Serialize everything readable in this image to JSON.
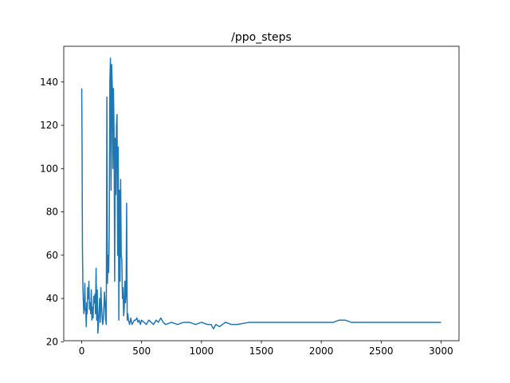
{
  "chart_data": {
    "type": "line",
    "title": "/ppo_steps",
    "xlabel": "",
    "ylabel": "",
    "xlim": [
      -150,
      3150
    ],
    "ylim": [
      20.5,
      156.5
    ],
    "xticks": [
      0,
      500,
      1000,
      1500,
      2000,
      2500,
      3000
    ],
    "yticks": [
      20,
      40,
      60,
      80,
      100,
      120,
      140
    ],
    "grid": false,
    "legend": "none",
    "series": [
      {
        "color": "#1f77b4",
        "x": [
          0,
          3,
          6,
          10,
          14,
          18,
          22,
          26,
          30,
          34,
          38,
          42,
          46,
          50,
          55,
          60,
          65,
          70,
          75,
          80,
          85,
          90,
          95,
          100,
          105,
          110,
          115,
          120,
          125,
          130,
          135,
          140,
          145,
          150,
          155,
          160,
          165,
          170,
          175,
          180,
          185,
          190,
          195,
          200,
          205,
          210,
          215,
          220,
          225,
          230,
          235,
          240,
          245,
          250,
          255,
          260,
          265,
          270,
          275,
          280,
          285,
          290,
          295,
          300,
          305,
          310,
          315,
          320,
          325,
          330,
          335,
          340,
          345,
          350,
          355,
          360,
          365,
          370,
          375,
          380,
          385,
          390,
          395,
          400,
          410,
          420,
          430,
          440,
          450,
          460,
          470,
          480,
          490,
          500,
          520,
          540,
          560,
          580,
          600,
          620,
          640,
          660,
          680,
          700,
          750,
          800,
          850,
          900,
          950,
          1000,
          1050,
          1080,
          1100,
          1120,
          1150,
          1200,
          1250,
          1300,
          1400,
          1500,
          1600,
          1700,
          1800,
          1900,
          2000,
          2050,
          2100,
          2150,
          2200,
          2250,
          2300,
          2400,
          2500,
          2600,
          2700,
          2800,
          2900,
          3000
        ],
        "y": [
          137,
          110,
          64,
          45,
          38,
          33,
          35,
          47,
          36,
          34,
          27,
          38,
          33,
          45,
          40,
          48,
          35,
          38,
          33,
          44,
          30,
          36,
          31,
          41,
          38,
          42,
          33,
          54,
          30,
          44,
          24,
          28,
          34,
          40,
          29,
          45,
          37,
          32,
          28,
          30,
          36,
          43,
          38,
          30,
          28,
          133,
          47,
          60,
          52,
          70,
          140,
          151,
          90,
          148,
          138,
          100,
          137,
          118,
          48,
          114,
          88,
          120,
          125,
          60,
          110,
          30,
          90,
          48,
          95,
          60,
          58,
          40,
          45,
          32,
          35,
          48,
          38,
          42,
          84,
          30,
          33,
          30,
          29,
          28,
          31,
          28,
          29,
          30,
          30,
          31,
          29,
          30,
          28,
          30,
          29,
          28,
          30,
          29,
          28,
          30,
          29,
          31,
          29,
          28,
          29,
          28,
          29,
          29,
          28,
          29,
          28,
          28,
          26,
          28,
          27,
          29,
          28,
          28,
          29,
          29,
          29,
          29,
          29,
          29,
          29,
          29,
          29,
          30,
          30,
          29,
          29,
          29,
          29,
          29,
          29,
          29,
          29,
          29
        ]
      }
    ]
  }
}
